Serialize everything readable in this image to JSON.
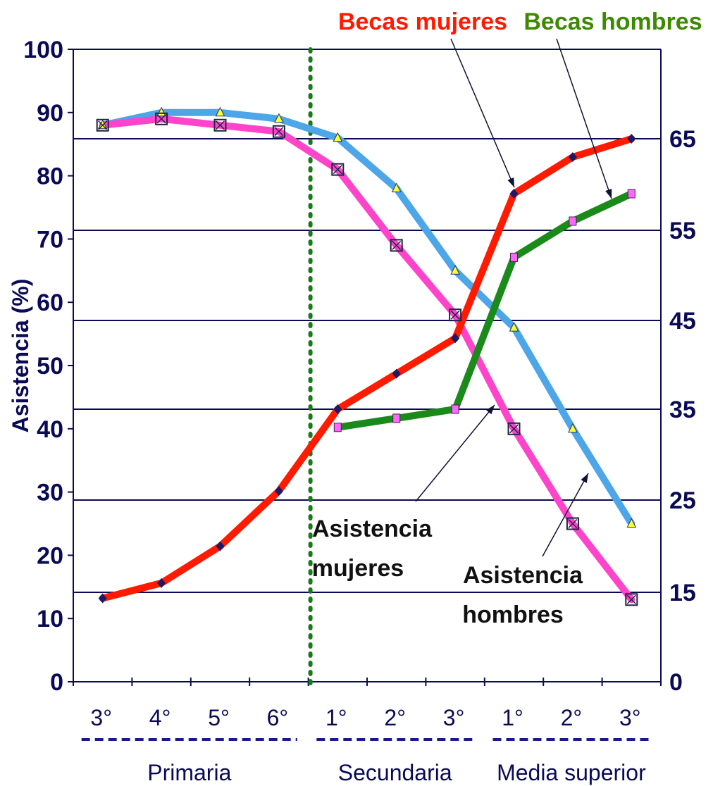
{
  "chart_data": {
    "type": "line",
    "ylabel": "Asistencia (%)",
    "ylim_left": [
      0,
      100
    ],
    "yticks_left": [
      "0",
      "10",
      "20",
      "30",
      "40",
      "50",
      "60",
      "70",
      "80",
      "90",
      "100"
    ],
    "ylim_right": [
      0,
      65
    ],
    "yticks_right": [
      "0",
      "15",
      "25",
      "35",
      "45",
      "55",
      "65"
    ],
    "categories": [
      "3°",
      "4°",
      "5°",
      "6°",
      "1°",
      "2°",
      "3°",
      "1°",
      "2°",
      "3°"
    ],
    "groups": [
      {
        "name": "Primaria",
        "from": 0,
        "to": 3
      },
      {
        "name": "Secundaria",
        "from": 4,
        "to": 6
      },
      {
        "name": "Media superior",
        "from": 7,
        "to": 9
      }
    ],
    "divider_after_category": 3,
    "series": [
      {
        "name": "Asistencia hombres",
        "axis": "left",
        "color": "#4da6e8",
        "marker": "triangle",
        "values": [
          88,
          90,
          90,
          89,
          86,
          78,
          65,
          56,
          40,
          25
        ]
      },
      {
        "name": "Asistencia mujeres",
        "axis": "left",
        "color": "#ff44cc",
        "marker": "square-x",
        "values": [
          88,
          89,
          88,
          87,
          81,
          69,
          58,
          40,
          25,
          13
        ]
      },
      {
        "name": "Becas mujeres",
        "axis": "right",
        "color": "#ff1a00",
        "marker": "diamond",
        "values": [
          14,
          16,
          20,
          26,
          35,
          39,
          43,
          59,
          63,
          67
        ]
      },
      {
        "name": "Becas hombres",
        "axis": "right",
        "color": "#1a8a1a",
        "marker": "square",
        "values": [
          null,
          null,
          null,
          null,
          33,
          34,
          35,
          52,
          56,
          59
        ]
      }
    ],
    "grid": true,
    "legend": "annotations with arrows"
  },
  "annotations": {
    "becas_mujeres": {
      "text": "Becas mujeres",
      "color": "#ff1a00"
    },
    "becas_hombres": {
      "text": "Becas hombres",
      "color": "#3d8a00"
    },
    "asistencia_mujeres": {
      "line1": "Asistencia",
      "line2": "mujeres"
    },
    "asistencia_hombres": {
      "line1": "Asistencia",
      "line2": "hombres"
    }
  }
}
